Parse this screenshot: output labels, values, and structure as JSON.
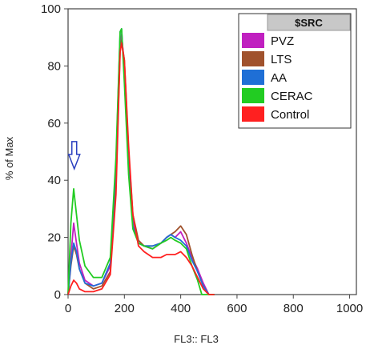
{
  "chart_data": {
    "type": "line",
    "title": "",
    "xlabel": "FL3:: FL3",
    "ylabel": "% of Max",
    "xlim": [
      0,
      1024
    ],
    "ylim": [
      0,
      100
    ],
    "xticks": [
      "0",
      "200",
      "400",
      "600",
      "800",
      "1000"
    ],
    "yticks": [
      "0",
      "20",
      "40",
      "60",
      "80",
      "100"
    ],
    "legend": {
      "header": "$SRC",
      "placement": "top-right"
    },
    "annotation": {
      "type": "arrow-down",
      "x": 22,
      "y": 44
    },
    "series": [
      {
        "name": "PVZ",
        "color": "#c020c0",
        "x": [
          0,
          10,
          20,
          30,
          40,
          60,
          90,
          120,
          150,
          170,
          185,
          190,
          200,
          215,
          230,
          250,
          270,
          300,
          330,
          350,
          365,
          380,
          400,
          420,
          440,
          460,
          480,
          500,
          520
        ],
        "y": [
          0,
          13,
          25,
          18,
          11,
          5,
          3,
          4,
          10,
          40,
          88,
          91,
          80,
          48,
          26,
          18,
          17,
          16,
          18,
          20,
          21,
          20,
          22,
          18,
          13,
          9,
          4,
          0,
          0
        ]
      },
      {
        "name": "LTS",
        "color": "#a0522d",
        "x": [
          0,
          10,
          20,
          30,
          40,
          60,
          90,
          120,
          150,
          170,
          185,
          190,
          200,
          215,
          230,
          250,
          270,
          300,
          330,
          350,
          365,
          380,
          400,
          420,
          440,
          460,
          480,
          500,
          520
        ],
        "y": [
          0,
          10,
          17,
          14,
          9,
          4,
          2,
          3,
          8,
          38,
          86,
          89,
          82,
          50,
          28,
          19,
          17,
          17,
          18,
          20,
          21,
          22,
          24,
          21,
          14,
          8,
          3,
          0,
          0
        ]
      },
      {
        "name": "AA",
        "color": "#1f6fd6",
        "x": [
          0,
          10,
          20,
          30,
          40,
          60,
          90,
          120,
          150,
          170,
          185,
          190,
          200,
          215,
          230,
          250,
          270,
          300,
          330,
          350,
          365,
          380,
          400,
          420,
          440,
          460,
          480,
          500,
          520
        ],
        "y": [
          0,
          11,
          18,
          15,
          9,
          4,
          3,
          4,
          11,
          45,
          92,
          93,
          76,
          44,
          24,
          18,
          17,
          17,
          18,
          20,
          21,
          20,
          19,
          17,
          12,
          8,
          3,
          0,
          0
        ]
      },
      {
        "name": "CERAC",
        "color": "#22cc22",
        "x": [
          0,
          10,
          20,
          30,
          40,
          60,
          90,
          120,
          150,
          170,
          185,
          190,
          200,
          215,
          230,
          250,
          270,
          300,
          330,
          350,
          365,
          380,
          400,
          420,
          440,
          460,
          475,
          490,
          520
        ],
        "y": [
          0,
          25,
          37,
          28,
          19,
          10,
          6,
          6,
          13,
          48,
          92,
          93,
          74,
          42,
          23,
          18,
          17,
          16,
          18,
          19,
          20,
          19,
          18,
          16,
          10,
          5,
          0,
          0,
          0
        ]
      },
      {
        "name": "Control",
        "color": "#ff2020",
        "x": [
          0,
          10,
          20,
          30,
          40,
          60,
          90,
          120,
          150,
          170,
          185,
          190,
          200,
          215,
          230,
          250,
          270,
          300,
          330,
          350,
          365,
          380,
          400,
          420,
          440,
          460,
          480,
          500,
          520
        ],
        "y": [
          0,
          3,
          5,
          4,
          2,
          1,
          1,
          2,
          7,
          35,
          85,
          88,
          82,
          52,
          28,
          17,
          15,
          13,
          13,
          14,
          14,
          14,
          15,
          13,
          10,
          6,
          2,
          0,
          0
        ]
      }
    ]
  }
}
